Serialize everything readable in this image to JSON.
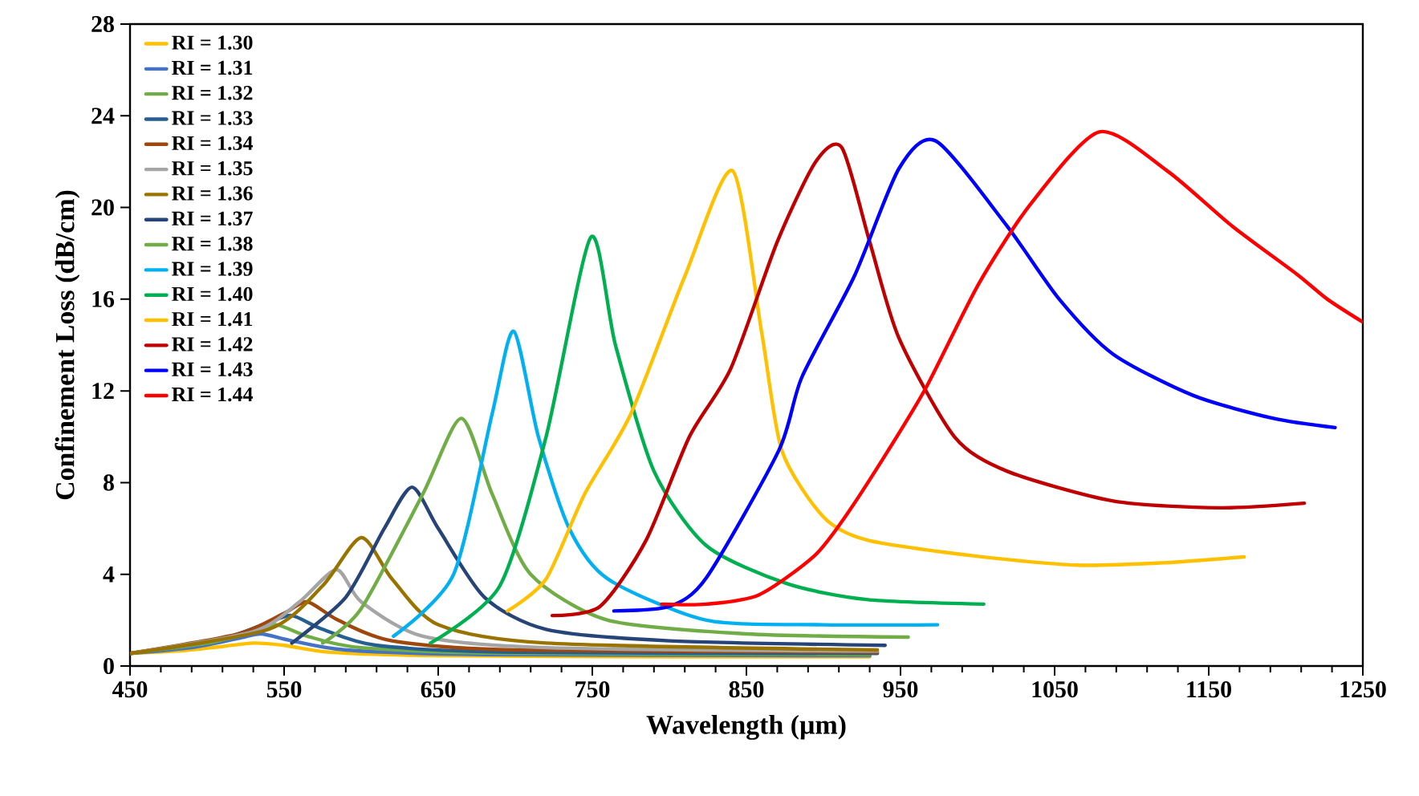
{
  "chart_data": {
    "type": "line",
    "xlabel": "Wavelength (µm)",
    "ylabel": "Confinement Loss (dB/cm)",
    "xlim": [
      450,
      1250
    ],
    "ylim": [
      0,
      28
    ],
    "xticks": [
      450,
      550,
      650,
      750,
      850,
      950,
      1050,
      1150,
      1250
    ],
    "yticks": [
      0,
      4,
      8,
      12,
      16,
      20,
      24,
      28
    ],
    "grid": false,
    "legend": "top left",
    "marker": "none",
    "line_style": "solid",
    "series": [
      {
        "name": "RI = 1.30",
        "color": "#ffc000",
        "x": [
          450,
          480,
          510,
          530,
          550,
          580,
          650,
          800,
          930
        ],
        "values": [
          0.55,
          0.65,
          0.85,
          1.0,
          0.9,
          0.6,
          0.45,
          0.4,
          0.4
        ]
      },
      {
        "name": "RI = 1.31",
        "color": "#4472c4",
        "x": [
          450,
          490,
          520,
          535,
          555,
          590,
          680,
          930
        ],
        "values": [
          0.55,
          0.8,
          1.2,
          1.4,
          1.1,
          0.7,
          0.5,
          0.45
        ]
      },
      {
        "name": "RI = 1.32",
        "color": "#70ad47",
        "x": [
          450,
          500,
          530,
          545,
          565,
          600,
          700,
          930
        ],
        "values": [
          0.55,
          1.0,
          1.5,
          1.8,
          1.3,
          0.8,
          0.55,
          0.5
        ]
      },
      {
        "name": "RI = 1.33",
        "color": "#255e91",
        "x": [
          450,
          510,
          540,
          555,
          575,
          610,
          700,
          935
        ],
        "values": [
          0.55,
          1.2,
          1.9,
          2.2,
          1.6,
          0.9,
          0.6,
          0.55
        ]
      },
      {
        "name": "RI = 1.34",
        "color": "#9e480e",
        "x": [
          450,
          520,
          550,
          565,
          585,
          620,
          700,
          935
        ],
        "values": [
          0.55,
          1.4,
          2.3,
          2.8,
          2.0,
          1.1,
          0.7,
          0.6
        ]
      },
      {
        "name": "RI = 1.35",
        "color": "#a5a5a5",
        "x": [
          450,
          530,
          560,
          584,
          600,
          640,
          720,
          935
        ],
        "values": [
          0.55,
          1.5,
          2.8,
          4.2,
          2.8,
          1.3,
          0.8,
          0.65
        ]
      },
      {
        "name": "RI = 1.36",
        "color": "#997300",
        "x": [
          450,
          540,
          575,
          600,
          620,
          650,
          720,
          935
        ],
        "values": [
          0.55,
          1.6,
          3.5,
          5.6,
          3.8,
          1.8,
          1.0,
          0.7
        ]
      },
      {
        "name": "RI = 1.37",
        "color": "#264478",
        "x": [
          555,
          590,
          615,
          633,
          650,
          680,
          720,
          800,
          940
        ],
        "values": [
          1.0,
          3.0,
          6.0,
          7.8,
          6.0,
          3.0,
          1.6,
          1.1,
          0.9
        ]
      },
      {
        "name": "RI = 1.38",
        "color": "#70ad47",
        "x": [
          575,
          600,
          640,
          665,
          685,
          710,
          760,
          850,
          955
        ],
        "values": [
          1.0,
          2.5,
          7.5,
          10.8,
          7.5,
          4.0,
          2.0,
          1.4,
          1.26
        ]
      },
      {
        "name": "RI = 1.39",
        "color": "#00b0f0",
        "x": [
          621,
          660,
          685,
          699,
          715,
          735,
          760,
          824,
          900,
          974
        ],
        "values": [
          1.3,
          4.0,
          11.0,
          14.6,
          10.0,
          6.0,
          3.8,
          2.0,
          1.8,
          1.8
        ]
      },
      {
        "name": "RI = 1.40",
        "color": "#00b050",
        "x": [
          645,
          690,
          720,
          749,
          765,
          790,
          824,
          876,
          928,
          1004
        ],
        "values": [
          1.0,
          3.5,
          10.0,
          18.7,
          14.0,
          8.5,
          5.25,
          3.6,
          2.9,
          2.7
        ]
      },
      {
        "name": "RI = 1.41",
        "color": "#ffc000",
        "x": [
          695,
          720,
          745,
          775,
          810,
          841,
          860,
          873,
          900,
          928,
          998,
          1064,
          1120,
          1173
        ],
        "values": [
          2.4,
          3.8,
          7.5,
          11.0,
          17.0,
          21.6,
          14.5,
          9.4,
          6.5,
          5.5,
          4.8,
          4.4,
          4.5,
          4.76
        ]
      },
      {
        "name": "RI = 1.42",
        "color": "#c00000",
        "x": [
          724,
          755,
          785,
          813,
          840,
          870,
          895,
          912,
          930,
          949,
          985,
          1019,
          1088,
          1157,
          1212
        ],
        "values": [
          2.2,
          2.6,
          5.5,
          10.0,
          13.0,
          18.5,
          22.0,
          22.6,
          18.5,
          14.3,
          10.0,
          8.5,
          7.2,
          6.9,
          7.1
        ]
      },
      {
        "name": "RI = 1.43",
        "color": "#0000ff",
        "x": [
          764,
          800,
          824,
          871,
          886,
          920,
          949,
          973,
          1019,
          1053,
          1088,
          1140,
          1192,
          1232
        ],
        "values": [
          2.4,
          2.6,
          3.85,
          9.4,
          12.6,
          17.0,
          21.7,
          22.9,
          19.2,
          16.0,
          13.6,
          11.8,
          10.8,
          10.4
        ]
      },
      {
        "name": "RI = 1.44",
        "color": "#ff0000",
        "x": [
          795,
          824,
          858,
          894,
          915,
          942,
          967,
          1001,
          1035,
          1079,
          1123,
          1165,
          1207,
          1227,
          1250
        ],
        "values": [
          2.7,
          2.7,
          3.1,
          4.8,
          6.6,
          9.4,
          12.2,
          16.7,
          20.2,
          23.3,
          21.6,
          19.2,
          17.1,
          16.0,
          15.0
        ]
      }
    ]
  }
}
